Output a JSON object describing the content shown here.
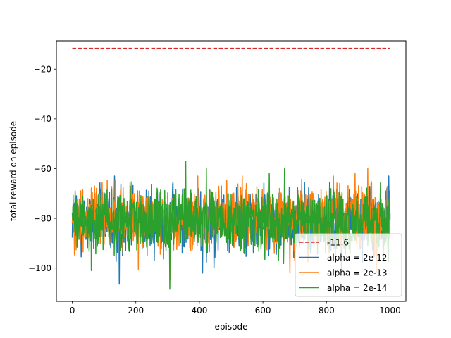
{
  "chart_data": {
    "type": "line",
    "xlabel": "episode",
    "ylabel": "total reward on episode",
    "xlim": [
      -50,
      1050
    ],
    "ylim": [
      -113.4,
      -8.6
    ],
    "xticks": [
      0,
      200,
      400,
      600,
      800,
      1000
    ],
    "yticks": [
      -100,
      -80,
      -60,
      -40,
      -20
    ],
    "xtick_labels": [
      "0",
      "200",
      "400",
      "600",
      "800",
      "1000"
    ],
    "ytick_labels": [
      "−100",
      "−80",
      "−60",
      "−40",
      "−20"
    ],
    "grid": false,
    "legend_position": "lower-right",
    "reference_line": {
      "name": "-11.6",
      "value": -11.6,
      "x": [
        0,
        1000
      ],
      "color": "#d62728",
      "dashed": true
    },
    "series": [
      {
        "name": "alpha = 2e-12",
        "color": "#1f77b4",
        "summary": {
          "episodes": [
            0,
            1000
          ],
          "mean": -81,
          "min": -106.5,
          "max": -62.5
        },
        "extremes": [
          [
            148,
            -106.5
          ],
          [
            258,
            -97
          ],
          [
            410,
            -102
          ],
          [
            133,
            -63
          ],
          [
            996,
            -63
          ],
          [
            990,
            -68
          ]
        ]
      },
      {
        "name": "alpha = 2e-13",
        "color": "#ff7f0e",
        "summary": {
          "episodes": [
            0,
            1000
          ],
          "mean": -80,
          "min": -104.5,
          "max": -60
        },
        "extremes": [
          [
            308,
            -104.5
          ],
          [
            685,
            -102
          ],
          [
            957,
            -102
          ],
          [
            930,
            -60
          ],
          [
            890,
            -62
          ],
          [
            940,
            -66
          ]
        ]
      },
      {
        "name": "alpha = 2e-14",
        "color": "#2ca02c",
        "summary": {
          "episodes": [
            0,
            1000
          ],
          "mean": -81,
          "min": -108.5,
          "max": -57
        },
        "extremes": [
          [
            307,
            -108.5
          ],
          [
            60,
            -101
          ],
          [
            357,
            -57
          ],
          [
            422,
            -60
          ],
          [
            620,
            -62
          ],
          [
            540,
            -94
          ]
        ]
      }
    ]
  }
}
